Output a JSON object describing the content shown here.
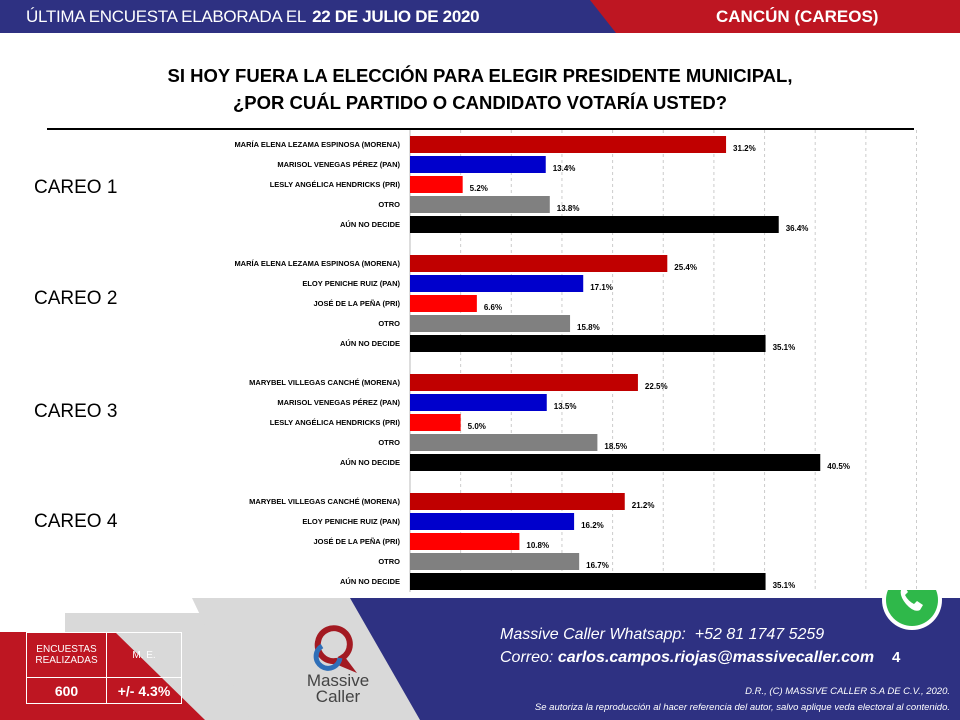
{
  "header": {
    "survey_prefix": "ÚLTIMA ENCUESTA ELABORADA EL",
    "survey_date": "22 DE JULIO DE 2020",
    "location": "CANCÚN (CAREOS)"
  },
  "title": {
    "line1": "SI HOY FUERA LA ELECCIÓN PARA ELEGIR PRESIDENTE MUNICIPAL,",
    "line2": "¿POR CUÁL PARTIDO O CANDIDATO VOTARÍA USTED?"
  },
  "chart_data": {
    "type": "bar",
    "orientation": "horizontal",
    "xlim": [
      0,
      50
    ],
    "grid": true,
    "unit": "%",
    "groups": [
      {
        "name": "CAREO 1",
        "categories": [
          "MARÍA ELENA LEZAMA ESPINOSA (MORENA)",
          "MARISOL VENEGAS PÉREZ (PAN)",
          "LESLY ANGÉLICA HENDRICKS (PRI)",
          "OTRO",
          "AÚN NO DECIDE"
        ],
        "values": [
          31.2,
          13.4,
          5.2,
          13.8,
          36.4
        ]
      },
      {
        "name": "CAREO 2",
        "categories": [
          "MARÍA ELENA LEZAMA ESPINOSA (MORENA)",
          "ELOY PENICHE RUIZ (PAN)",
          "JOSÉ DE LA PEÑA (PRI)",
          "OTRO",
          "AÚN NO DECIDE"
        ],
        "values": [
          25.4,
          17.1,
          6.6,
          15.8,
          35.1
        ]
      },
      {
        "name": "CAREO 3",
        "categories": [
          "MARYBEL VILLEGAS CANCHÉ (MORENA)",
          "MARISOL VENEGAS PÉREZ (PAN)",
          "LESLY ANGÉLICA HENDRICKS (PRI)",
          "OTRO",
          "AÚN NO DECIDE"
        ],
        "values": [
          22.5,
          13.5,
          5.0,
          18.5,
          40.5
        ]
      },
      {
        "name": "CAREO 4",
        "categories": [
          "MARYBEL VILLEGAS CANCHÉ (MORENA)",
          "ELOY PENICHE RUIZ (PAN)",
          "JOSÉ DE LA PEÑA (PRI)",
          "OTRO",
          "AÚN NO DECIDE"
        ],
        "values": [
          21.2,
          16.2,
          10.8,
          16.7,
          35.1
        ]
      }
    ],
    "colors": [
      "#c00000",
      "#0000cc",
      "#ff0000",
      "#808080",
      "#000000"
    ]
  },
  "footer": {
    "table": {
      "col1_header": "ENCUESTAS REALIZADAS",
      "col2_header": "M. E.",
      "col1_value": "600",
      "col2_value": "+/- 4.3%"
    },
    "logo_text": "Massive Caller",
    "whatsapp_label": "Massive Caller Whatsapp:",
    "whatsapp_number": "+52 81 1747 5259",
    "email_label": "Correo:",
    "email": "carlos.campos.riojas@massivecaller.com",
    "page_number": "4",
    "copyright": "D.R., (C) MASSIVE CALLER S.A DE C.V., 2020.",
    "disclaimer": "Se autoriza la reproducción al hacer referencia del autor, salvo aplique veda electoral al contenido."
  }
}
